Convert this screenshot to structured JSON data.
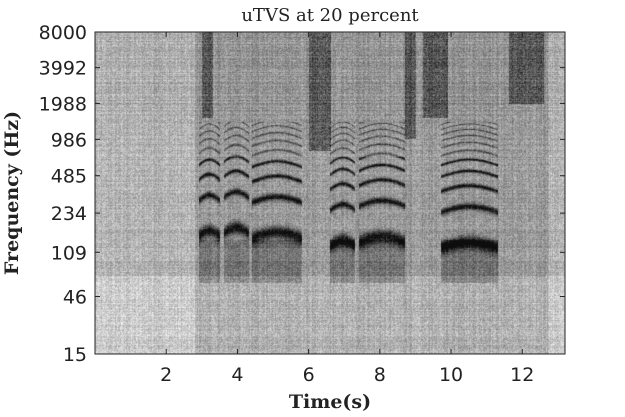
{
  "chart_data": {
    "type": "heatmap",
    "title": "uTVS at 20 percent",
    "xlabel": "Time(s)",
    "ylabel": "Frequency (Hz)",
    "x_ticks": [
      2,
      4,
      6,
      8,
      10,
      12
    ],
    "x_range": [
      0,
      13.2
    ],
    "y_ticks": [
      15,
      46,
      109,
      234,
      485,
      986,
      1988,
      3992,
      8000
    ],
    "y_range": [
      15,
      8000
    ],
    "y_scale": "log",
    "colormap": "grayscale",
    "colors": {
      "text": "#222222",
      "background": "#ffffff"
    },
    "voiced_segments": [
      {
        "start": 2.9,
        "end": 3.5,
        "f0": 150
      },
      {
        "start": 3.6,
        "end": 4.3,
        "f0": 160
      },
      {
        "start": 4.4,
        "end": 5.8,
        "f0": 145
      },
      {
        "start": 6.6,
        "end": 7.3,
        "f0": 125
      },
      {
        "start": 7.4,
        "end": 8.7,
        "f0": 135
      },
      {
        "start": 9.7,
        "end": 11.3,
        "f0": 120
      }
    ],
    "noise_bursts": [
      {
        "start": 3.0,
        "end": 3.3,
        "fmin": 1500,
        "fmax": 8000
      },
      {
        "start": 6.0,
        "end": 6.6,
        "fmin": 800,
        "fmax": 8000
      },
      {
        "start": 8.7,
        "end": 9.0,
        "fmin": 1000,
        "fmax": 8000
      },
      {
        "start": 9.2,
        "end": 9.9,
        "fmin": 1500,
        "fmax": 8000
      },
      {
        "start": 11.6,
        "end": 12.6,
        "fmin": 2000,
        "fmax": 8000
      }
    ]
  }
}
